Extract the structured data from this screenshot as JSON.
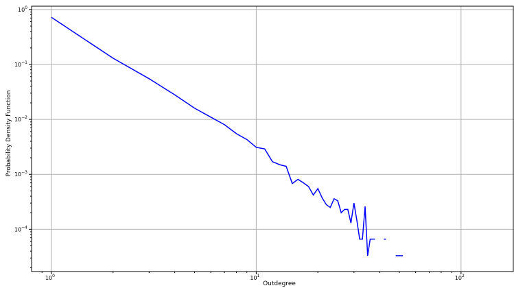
{
  "chart_data": {
    "type": "line",
    "xlabel": "Outdegree",
    "ylabel": "Probability Density Function",
    "xscale": "log",
    "yscale": "log",
    "xlim": [
      0.8,
      180
    ],
    "ylim": [
      1.7e-05,
      1.15
    ],
    "grid": true,
    "x_ticks": [
      {
        "value": 1,
        "base": "10",
        "exp": "0"
      },
      {
        "value": 10,
        "base": "10",
        "exp": "1"
      },
      {
        "value": 100,
        "base": "10",
        "exp": "2"
      }
    ],
    "y_ticks": [
      {
        "value": 0.0001,
        "base": "10",
        "exp": "−4"
      },
      {
        "value": 0.001,
        "base": "10",
        "exp": "−3"
      },
      {
        "value": 0.01,
        "base": "10",
        "exp": "−2"
      },
      {
        "value": 0.1,
        "base": "10",
        "exp": "−1"
      },
      {
        "value": 1,
        "base": "10",
        "exp": "0"
      }
    ],
    "series": [
      {
        "color": "#0000ff",
        "segments": [
          [
            [
              1,
              0.72
            ],
            [
              2,
              0.13
            ],
            [
              3,
              0.055
            ],
            [
              4,
              0.028
            ],
            [
              5,
              0.016
            ],
            [
              6,
              0.011
            ],
            [
              7,
              0.008
            ],
            [
              8,
              0.0055
            ],
            [
              9,
              0.0043
            ],
            [
              10,
              0.0031
            ],
            [
              11,
              0.0029
            ],
            [
              12,
              0.0017
            ],
            [
              13,
              0.0015
            ],
            [
              14,
              0.0014
            ],
            [
              15,
              0.00068
            ],
            [
              16,
              0.00081
            ],
            [
              17,
              0.0007
            ],
            [
              18,
              0.0006
            ],
            [
              19,
              0.00042
            ],
            [
              20,
              0.00055
            ],
            [
              21,
              0.00037
            ],
            [
              22,
              0.00028
            ],
            [
              23,
              0.00025
            ],
            [
              24,
              0.00036
            ],
            [
              25,
              0.00033
            ],
            [
              26,
              0.0002
            ],
            [
              27,
              0.00023
            ],
            [
              28,
              0.00023
            ],
            [
              29,
              0.00013
            ],
            [
              30,
              0.0003
            ],
            [
              31,
              0.000145
            ],
            [
              32,
              6.6e-05
            ],
            [
              33,
              6.6e-05
            ],
            [
              34,
              0.00026
            ],
            [
              35,
              3.3e-05
            ],
            [
              36,
              6.6e-05
            ],
            [
              37,
              6.6e-05
            ],
            [
              38,
              6.6e-05
            ]
          ],
          [
            [
              42,
              6.6e-05
            ],
            [
              43,
              6.6e-05
            ]
          ],
          [
            [
              48,
              3.3e-05
            ],
            [
              52,
              3.3e-05
            ]
          ]
        ]
      }
    ]
  }
}
